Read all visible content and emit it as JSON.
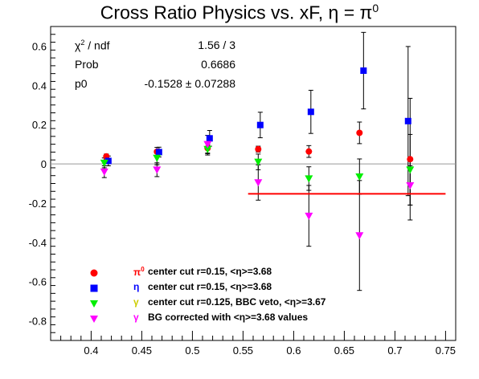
{
  "chart_data": {
    "type": "scatter",
    "title": "Cross Ratio Physics vs. xF, η = π",
    "title_sup": "0",
    "xlim": [
      0.36,
      0.76
    ],
    "ylim": [
      -0.9,
      0.7
    ],
    "x_ticks": [
      "0.4",
      "0.45",
      "0.5",
      "0.55",
      "0.6",
      "0.65",
      "0.7",
      "0.75"
    ],
    "y_ticks": [
      "0.6",
      "0.4",
      "0.2",
      "0",
      "-0.2",
      "-0.4",
      "-0.6",
      "-0.8"
    ],
    "zero_line": true,
    "stats": {
      "chi2_label": "χ",
      "chi2_label_sup": "2",
      "chi2_label_rest": " / ndf",
      "chi2_value": "1.56 / 3",
      "prob_label": "Prob",
      "prob_value": "0.6686",
      "p0_label": "p0",
      "p0_value": "-0.1528 ± 0.07288"
    },
    "fit_line": {
      "y": -0.1528,
      "x_range": [
        0.555,
        0.75
      ],
      "color": "#ff0000"
    },
    "series": [
      {
        "symbol": "π",
        "symbol_sup": "0",
        "label": "center cut r=0.15, <η>=3.68",
        "color": "#ff0000",
        "marker": "circle",
        "points": [
          {
            "x": 0.415,
            "y": 0.038,
            "err": 0.012
          },
          {
            "x": 0.465,
            "y": 0.062,
            "err": 0.022
          },
          {
            "x": 0.515,
            "y": 0.08,
            "err": 0.028
          },
          {
            "x": 0.565,
            "y": 0.075,
            "err": 0.015
          },
          {
            "x": 0.615,
            "y": 0.063,
            "err": 0.03
          },
          {
            "x": 0.665,
            "y": 0.158,
            "err": 0.055
          },
          {
            "x": 0.715,
            "y": 0.024,
            "err": 0.31
          }
        ]
      },
      {
        "symbol": "η",
        "symbol_sup": "",
        "label": "center cut r=0.15, <η>=3.68",
        "color": "#0000ff",
        "marker": "square",
        "points": [
          {
            "x": 0.417,
            "y": 0.015,
            "err": 0.025
          },
          {
            "x": 0.467,
            "y": 0.06,
            "err": 0.025
          },
          {
            "x": 0.517,
            "y": 0.13,
            "err": 0.04
          },
          {
            "x": 0.567,
            "y": 0.198,
            "err": 0.065
          },
          {
            "x": 0.617,
            "y": 0.265,
            "err": 0.11
          },
          {
            "x": 0.669,
            "y": 0.475,
            "err": 0.195
          },
          {
            "x": 0.713,
            "y": 0.218,
            "err": 0.38
          }
        ]
      },
      {
        "symbol": "γ",
        "symbol_sup": "",
        "label": "center cut r=0.125, BBC veto, <η>=3.67",
        "color": "#00ee00",
        "marker": "triangle-down",
        "points": [
          {
            "x": 0.413,
            "y": 0.005,
            "err": 0.025
          },
          {
            "x": 0.465,
            "y": 0.03,
            "err": 0.035
          },
          {
            "x": 0.515,
            "y": 0.075,
            "err": 0.03
          },
          {
            "x": 0.565,
            "y": 0.01,
            "err": 0.04
          },
          {
            "x": 0.615,
            "y": -0.075,
            "err": 0.06
          },
          {
            "x": 0.665,
            "y": -0.065,
            "err": 0.09
          },
          {
            "x": 0.715,
            "y": -0.03,
            "err": 0.18
          }
        ]
      },
      {
        "symbol": "γ",
        "symbol_sup": "",
        "label": "BG corrected with <η>=3.68 values",
        "color": "#ff00ff",
        "marker": "triangle-down",
        "points": [
          {
            "x": 0.413,
            "y": -0.04,
            "err": 0.03
          },
          {
            "x": 0.465,
            "y": -0.03,
            "err": 0.035
          },
          {
            "x": 0.515,
            "y": 0.1,
            "err": 0.045
          },
          {
            "x": 0.565,
            "y": -0.095,
            "err": 0.09
          },
          {
            "x": 0.615,
            "y": -0.265,
            "err": 0.155
          },
          {
            "x": 0.665,
            "y": -0.365,
            "err": 0.28
          },
          {
            "x": 0.715,
            "y": -0.11,
            "err": 0.1
          }
        ]
      }
    ]
  }
}
